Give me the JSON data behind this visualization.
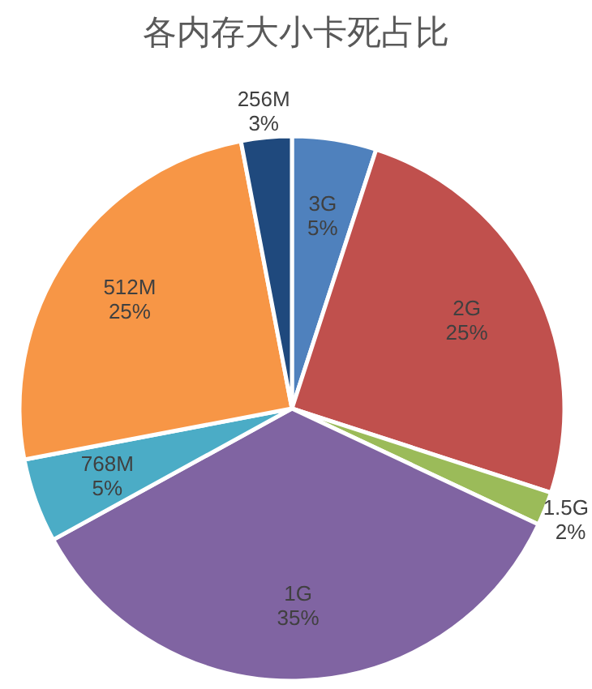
{
  "chart_data": {
    "type": "pie",
    "title": "各内存大小卡死占比",
    "categories": [
      "3G",
      "2G",
      "1.5G",
      "1G",
      "768M",
      "512M",
      "256M"
    ],
    "values": [
      5,
      25,
      2,
      35,
      5,
      25,
      3
    ],
    "value_labels": [
      "5%",
      "25%",
      "2%",
      "35%",
      "5%",
      "25%",
      "3%"
    ],
    "colors": [
      "#4f81bd",
      "#c0504d",
      "#9bbb59",
      "#8064a2",
      "#4bacc6",
      "#f79646",
      "#1f497d"
    ],
    "legend": false
  }
}
